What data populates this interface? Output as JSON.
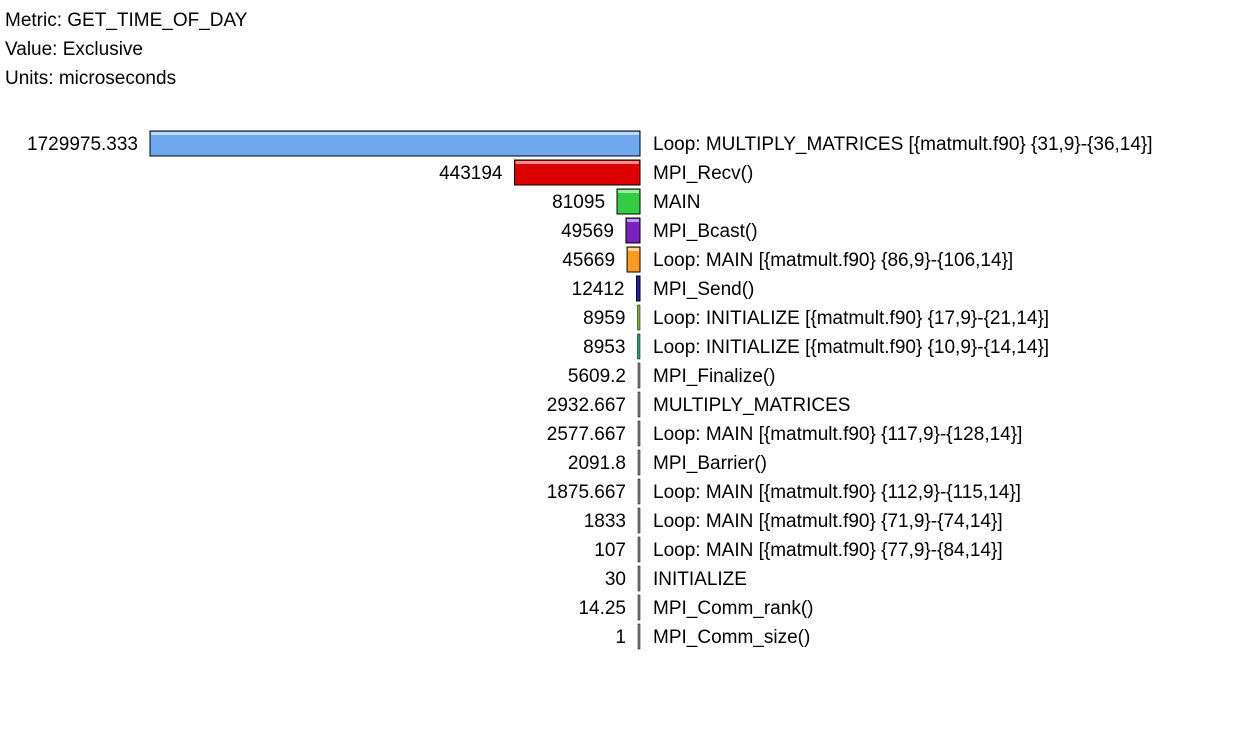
{
  "header": {
    "metric_label": "Metric:",
    "metric": "GET_TIME_OF_DAY",
    "value_label": "Value:",
    "value": "Exclusive",
    "units_label": "Units:",
    "units": "microseconds"
  },
  "chart_data": {
    "type": "bar",
    "orientation": "horizontal",
    "metric": "GET_TIME_OF_DAY",
    "value_type": "Exclusive",
    "units": "microseconds",
    "categories": [
      "Loop: MULTIPLY_MATRICES [{matmult.f90} {31,9}-{36,14}]",
      "MPI_Recv()",
      "MAIN",
      "MPI_Bcast()",
      "Loop: MAIN [{matmult.f90} {86,9}-{106,14}]",
      "MPI_Send()",
      "Loop: INITIALIZE [{matmult.f90} {17,9}-{21,14}]",
      "Loop: INITIALIZE [{matmult.f90} {10,9}-{14,14}]",
      "MPI_Finalize()",
      "MULTIPLY_MATRICES",
      "Loop: MAIN [{matmult.f90} {117,9}-{128,14}]",
      "MPI_Barrier()",
      "Loop: MAIN [{matmult.f90} {112,9}-{115,14}]",
      "Loop: MAIN [{matmult.f90} {71,9}-{74,14}]",
      "Loop: MAIN [{matmult.f90} {77,9}-{84,14}]",
      "INITIALIZE",
      "MPI_Comm_rank()",
      "MPI_Comm_size()"
    ],
    "values": [
      1729975.333,
      443194,
      81095,
      49569,
      45669,
      12412,
      8959,
      8953,
      5609.2,
      2932.667,
      2577.667,
      2091.8,
      1875.667,
      1833,
      107,
      30,
      14.25,
      1
    ],
    "value_labels": [
      "1729975.333",
      "443194",
      "81095",
      "49569",
      "45669",
      "12412",
      "8959",
      "8953",
      "5609.2",
      "2932.667",
      "2577.667",
      "2091.8",
      "1875.667",
      "1833",
      "107",
      "30",
      "14.25",
      "1"
    ],
    "colors": [
      "#6fa8ef",
      "#dd0000",
      "#33cc44",
      "#7722bb",
      "#ff9922",
      "#2222aa",
      "#88aa44",
      "#339977",
      "#888888",
      "#888888",
      "#888888",
      "#888888",
      "#888888",
      "#888888",
      "#888888",
      "#888888",
      "#888888",
      "#888888"
    ],
    "sort": "descending",
    "grid": false,
    "legend": "none"
  }
}
